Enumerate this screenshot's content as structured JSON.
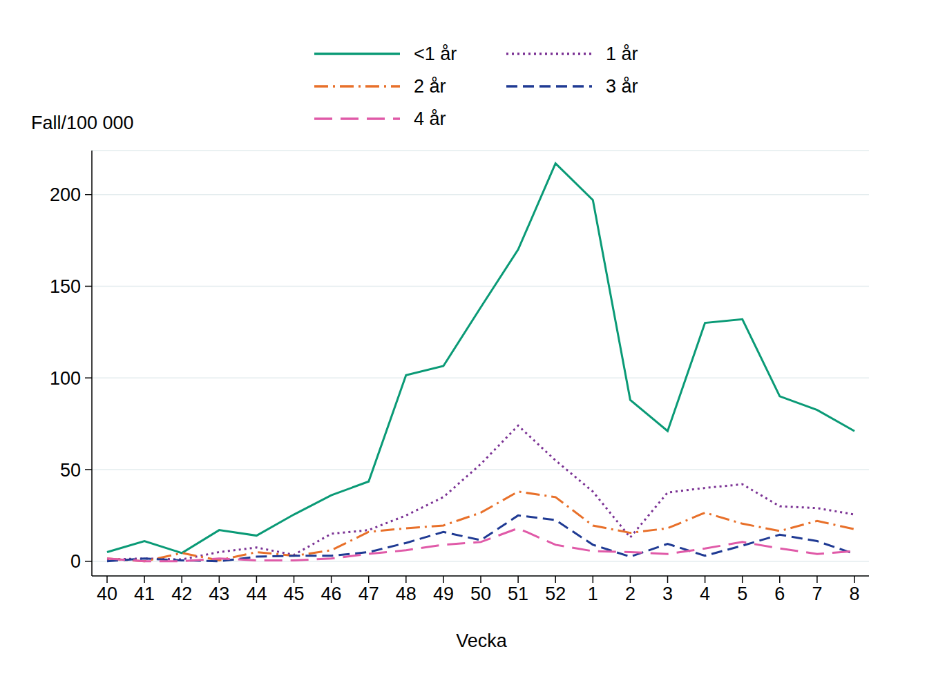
{
  "chart_data": {
    "type": "line",
    "x_label": "Vecka",
    "y_label": "Fall/100 000",
    "categories": [
      "40",
      "41",
      "42",
      "43",
      "44",
      "45",
      "46",
      "47",
      "48",
      "49",
      "50",
      "51",
      "52",
      "1",
      "2",
      "3",
      "4",
      "5",
      "6",
      "7",
      "8"
    ],
    "series": [
      {
        "name": "<1 år",
        "color": "#0a9a76",
        "line_style": "solid",
        "values": [
          5,
          11,
          4.5,
          17,
          14,
          25.5,
          36,
          43.5,
          101.5,
          106.5,
          138.5,
          170,
          217,
          197,
          88,
          71,
          130,
          132,
          90,
          82.5,
          71
        ]
      },
      {
        "name": "1 år",
        "color": "#7b3294",
        "line_style": "dotted",
        "values": [
          1,
          1.5,
          1,
          5,
          7.5,
          3.5,
          15,
          17,
          25,
          35,
          53,
          74,
          55,
          38,
          13,
          37.5,
          40,
          42,
          30,
          29,
          25.5
        ]
      },
      {
        "name": "2 år",
        "color": "#e8702a",
        "line_style": "dashdot",
        "values": [
          1.5,
          0,
          4.5,
          0.5,
          5,
          3,
          6,
          16,
          18,
          19.5,
          26.5,
          38,
          35,
          19.5,
          15.5,
          18,
          26.5,
          20.5,
          16.5,
          22,
          17.5
        ]
      },
      {
        "name": "3 år",
        "color": "#1f3a93",
        "line_style": "dashed",
        "values": [
          0,
          1.5,
          0.5,
          0,
          2.5,
          3,
          3,
          5,
          10,
          16,
          11.5,
          25,
          22.5,
          9,
          2.5,
          9.5,
          3,
          8.5,
          14.5,
          11,
          4
        ]
      },
      {
        "name": "4 år",
        "color": "#e05aa8",
        "line_style": "longdash",
        "values": [
          1.5,
          0,
          0,
          1.5,
          0.5,
          0.5,
          1.5,
          4,
          6,
          9,
          10.5,
          18,
          9,
          5.5,
          5,
          4,
          7,
          10.5,
          7,
          4,
          5.5
        ]
      }
    ],
    "ylim": [
      -8,
      224
    ],
    "yticks": [
      0,
      50,
      100,
      150,
      200
    ],
    "grid": true,
    "legend": "top"
  }
}
